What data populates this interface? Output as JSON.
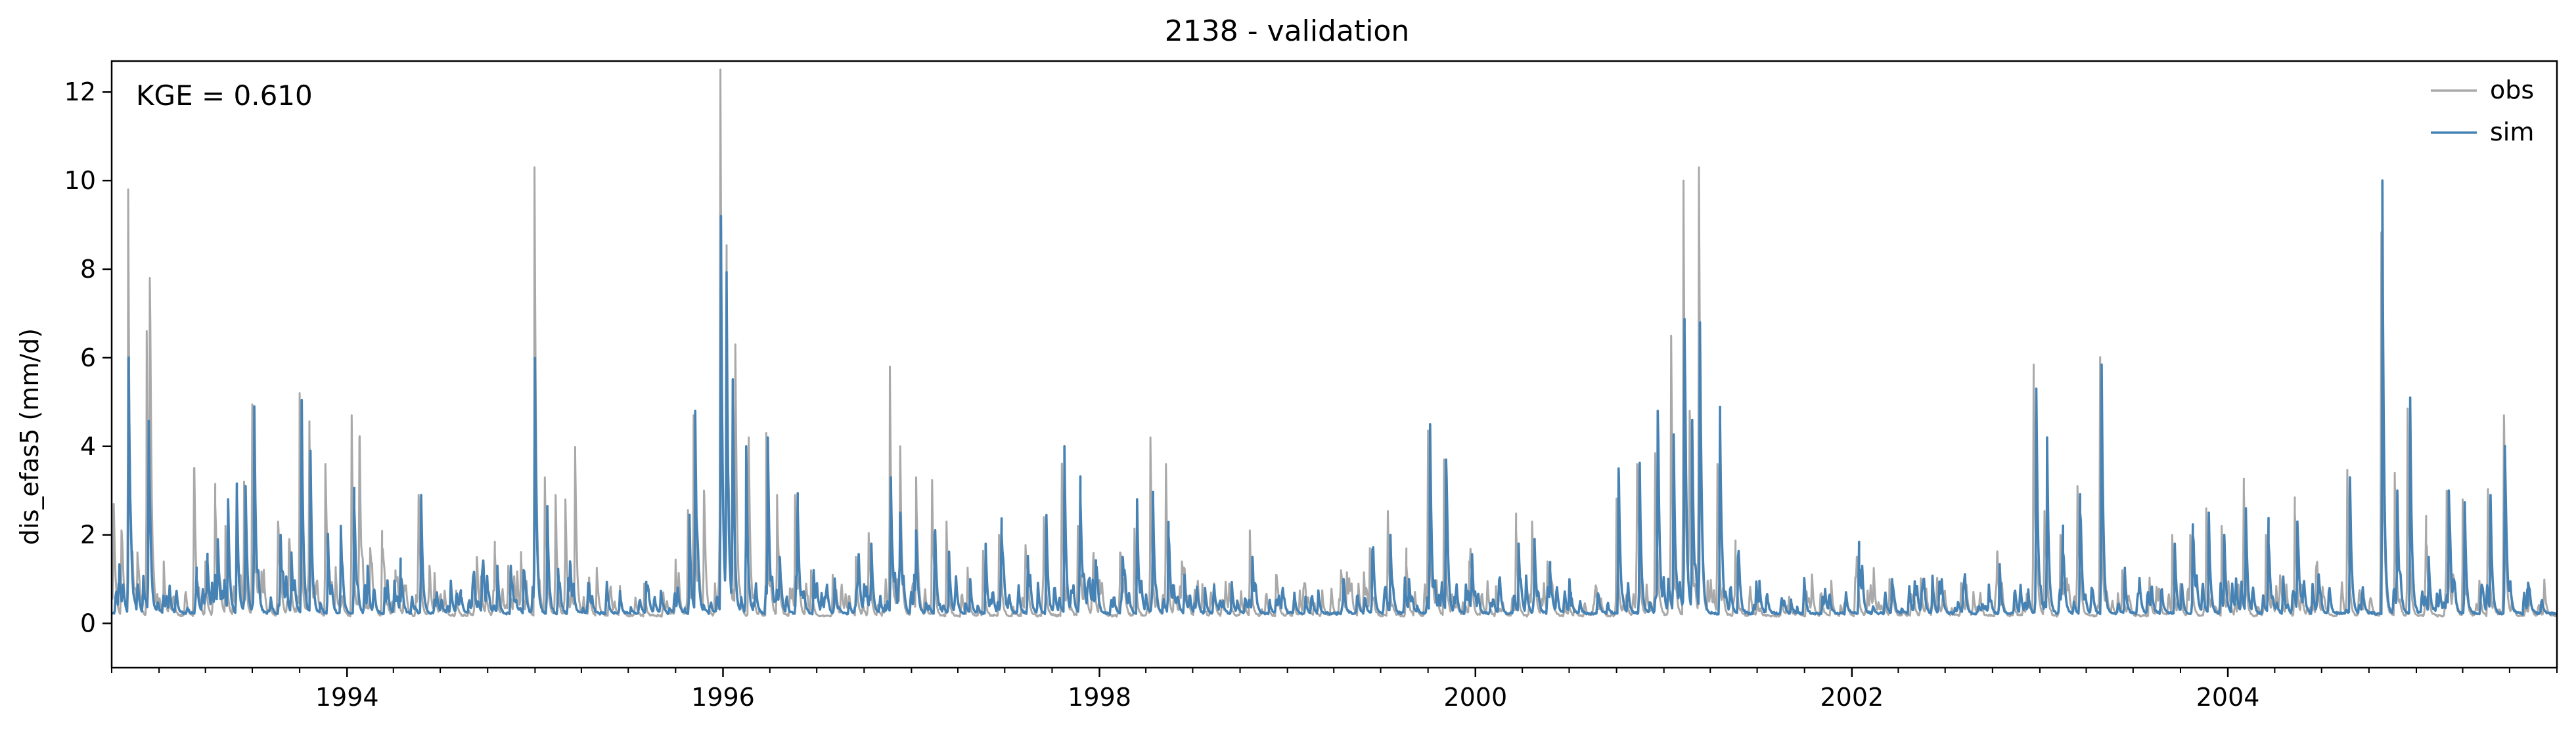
{
  "chart_data": {
    "type": "line",
    "title": "2138 - validation",
    "xlabel": "",
    "ylabel": "dis_efas5 (mm/d)",
    "xlim": [
      "1992-10-01",
      "2005-10-01"
    ],
    "ylim": [
      -1,
      12.7
    ],
    "x_ticks": [
      {
        "date": "1994-01-01",
        "label": "1994"
      },
      {
        "date": "1996-01-01",
        "label": "1996"
      },
      {
        "date": "1998-01-01",
        "label": "1998"
      },
      {
        "date": "2000-01-01",
        "label": "2000"
      },
      {
        "date": "2002-01-01",
        "label": "2002"
      },
      {
        "date": "2004-01-01",
        "label": "2004"
      }
    ],
    "y_ticks": [
      0,
      2,
      4,
      6,
      8,
      10,
      12
    ],
    "grid": false,
    "legend_position": "top-right",
    "annotation": "KGE = 0.610",
    "series": [
      {
        "name": "obs",
        "color": "#a9a9a9",
        "baseline": 0.15,
        "events": [
          [
            "1992-10-05",
            2.7
          ],
          [
            "1992-10-20",
            2.1
          ],
          [
            "1992-11-02",
            9.8
          ],
          [
            "1992-11-20",
            1.6
          ],
          [
            "1992-12-08",
            6.6
          ],
          [
            "1992-12-14",
            7.8
          ],
          [
            "1993-01-10",
            1.4
          ],
          [
            "1993-03-10",
            3.5
          ],
          [
            "1993-04-01",
            1.4
          ],
          [
            "1993-04-20",
            2.7
          ],
          [
            "1993-05-10",
            2.2
          ],
          [
            "1993-06-01",
            2.9
          ],
          [
            "1993-06-15",
            3.2
          ],
          [
            "1993-07-01",
            4.9
          ],
          [
            "1993-08-20",
            2.3
          ],
          [
            "1993-09-10",
            1.8
          ],
          [
            "1993-10-01",
            5.2
          ],
          [
            "1993-10-20",
            4.3
          ],
          [
            "1993-11-20",
            3.6
          ],
          [
            "1993-12-10",
            1.2
          ],
          [
            "1994-01-10",
            4.7
          ],
          [
            "1994-01-25",
            4.2
          ],
          [
            "1994-02-15",
            1.7
          ],
          [
            "1994-03-10",
            1.7
          ],
          [
            "1994-04-05",
            1.2
          ],
          [
            "1994-05-20",
            2.9
          ],
          [
            "1994-06-10",
            1.3
          ],
          [
            "1994-08-01",
            0.7
          ],
          [
            "1994-09-10",
            1.5
          ],
          [
            "1994-10-15",
            1.6
          ],
          [
            "1994-11-10",
            1.3
          ],
          [
            "1994-12-05",
            1.5
          ],
          [
            "1994-12-31",
            10.3
          ],
          [
            "1995-01-20",
            3.3
          ],
          [
            "1995-02-10",
            2.9
          ],
          [
            "1995-03-01",
            2.8
          ],
          [
            "1995-03-20",
            3.8
          ],
          [
            "1995-05-01",
            1.2
          ],
          [
            "1995-06-15",
            0.8
          ],
          [
            "1995-08-01",
            0.9
          ],
          [
            "1995-10-01",
            1.4
          ],
          [
            "1995-10-25",
            2.5
          ],
          [
            "1995-11-05",
            4.7
          ],
          [
            "1995-11-25",
            3.0
          ],
          [
            "1995-12-27",
            12.2
          ],
          [
            "1996-01-08",
            7.8
          ],
          [
            "1996-01-25",
            6.3
          ],
          [
            "1996-02-20",
            4.2
          ],
          [
            "1996-03-25",
            4.3
          ],
          [
            "1996-04-15",
            2.9
          ],
          [
            "1996-05-20",
            2.9
          ],
          [
            "1996-06-20",
            1.2
          ],
          [
            "1996-08-01",
            1.1
          ],
          [
            "1996-09-15",
            1.5
          ],
          [
            "1996-10-10",
            2.0
          ],
          [
            "1996-11-20",
            5.8
          ],
          [
            "1996-12-10",
            4.0
          ],
          [
            "1997-01-10",
            3.3
          ],
          [
            "1997-02-10",
            3.2
          ],
          [
            "1997-03-10",
            2.3
          ],
          [
            "1997-04-20",
            1.2
          ],
          [
            "1997-05-20",
            1.6
          ],
          [
            "1997-06-20",
            2.0
          ],
          [
            "1997-08-10",
            1.5
          ],
          [
            "1997-09-15",
            2.4
          ],
          [
            "1997-10-20",
            3.6
          ],
          [
            "1997-11-20",
            2.2
          ],
          [
            "1997-12-20",
            1.5
          ],
          [
            "1998-02-10",
            1.6
          ],
          [
            "1998-03-10",
            2.1
          ],
          [
            "1998-04-10",
            4.2
          ],
          [
            "1998-05-10",
            3.6
          ],
          [
            "1998-06-10",
            1.4
          ],
          [
            "1998-07-20",
            0.8
          ],
          [
            "1998-09-10",
            0.9
          ],
          [
            "1998-10-20",
            2.1
          ],
          [
            "1998-12-10",
            1.1
          ],
          [
            "1999-02-01",
            0.8
          ],
          [
            "1999-04-15",
            1.2
          ],
          [
            "1999-06-10",
            1.7
          ],
          [
            "1999-07-15",
            2.5
          ],
          [
            "1999-08-20",
            1.3
          ],
          [
            "1999-10-01",
            4.2
          ],
          [
            "1999-11-01",
            3.7
          ],
          [
            "1999-12-20",
            1.4
          ],
          [
            "2000-02-10",
            0.8
          ],
          [
            "2000-03-20",
            2.1
          ],
          [
            "2000-04-20",
            2.3
          ],
          [
            "2000-05-20",
            1.4
          ],
          [
            "2000-07-01",
            0.4
          ],
          [
            "2000-08-20",
            0.6
          ],
          [
            "2000-10-01",
            2.8
          ],
          [
            "2000-11-10",
            3.6
          ],
          [
            "2000-12-15",
            3.8
          ],
          [
            "2001-01-15",
            6.5
          ],
          [
            "2001-02-08",
            10.0
          ],
          [
            "2001-02-20",
            4.8
          ],
          [
            "2001-03-10",
            10.3
          ],
          [
            "2001-04-15",
            3.6
          ],
          [
            "2001-05-20",
            1.6
          ],
          [
            "2001-07-01",
            0.5
          ],
          [
            "2001-09-01",
            0.6
          ],
          [
            "2001-11-01",
            0.6
          ],
          [
            "2002-01-10",
            1.3
          ],
          [
            "2002-03-15",
            1.0
          ],
          [
            "2002-05-15",
            1.0
          ],
          [
            "2002-08-01",
            0.8
          ],
          [
            "2002-10-10",
            1.6
          ],
          [
            "2002-12-20",
            5.2
          ],
          [
            "2003-01-10",
            2.5
          ],
          [
            "2003-02-10",
            2.0
          ],
          [
            "2003-03-15",
            3.1
          ],
          [
            "2003-04-28",
            5.8
          ],
          [
            "2003-06-10",
            1.2
          ],
          [
            "2003-08-01",
            0.6
          ],
          [
            "2003-09-15",
            2.0
          ],
          [
            "2003-10-20",
            2.0
          ],
          [
            "2003-11-20",
            2.6
          ],
          [
            "2003-12-20",
            2.2
          ],
          [
            "2004-02-01",
            3.0
          ],
          [
            "2004-03-15",
            2.0
          ],
          [
            "2004-05-10",
            2.5
          ],
          [
            "2004-06-20",
            1.2
          ],
          [
            "2004-08-20",
            3.4
          ],
          [
            "2004-10-25",
            8.8
          ],
          [
            "2004-11-20",
            3.4
          ],
          [
            "2004-12-15",
            4.8
          ],
          [
            "2005-01-20",
            1.8
          ],
          [
            "2005-03-01",
            3.0
          ],
          [
            "2005-04-01",
            2.8
          ],
          [
            "2005-05-20",
            3.0
          ],
          [
            "2005-06-20",
            4.7
          ],
          [
            "2005-08-01",
            0.5
          ]
        ]
      },
      {
        "name": "sim",
        "color": "#4682b4",
        "baseline": 0.2,
        "events": [
          [
            "1992-10-15",
            0.7
          ],
          [
            "1992-11-03",
            5.6
          ],
          [
            "1992-11-20",
            0.8
          ],
          [
            "1992-12-12",
            4.5
          ],
          [
            "1993-01-15",
            0.6
          ],
          [
            "1993-03-15",
            1.0
          ],
          [
            "1993-04-05",
            1.4
          ],
          [
            "1993-04-25",
            1.9
          ],
          [
            "1993-05-15",
            2.8
          ],
          [
            "1993-06-01",
            2.9
          ],
          [
            "1993-06-18",
            3.1
          ],
          [
            "1993-07-05",
            4.9
          ],
          [
            "1993-08-25",
            2.0
          ],
          [
            "1993-09-15",
            1.6
          ],
          [
            "1993-10-05",
            5.0
          ],
          [
            "1993-10-22",
            3.9
          ],
          [
            "1993-11-25",
            2.0
          ],
          [
            "1993-12-20",
            2.2
          ],
          [
            "1994-01-15",
            2.6
          ],
          [
            "1994-02-10",
            1.3
          ],
          [
            "1994-03-15",
            0.8
          ],
          [
            "1994-04-15",
            0.5
          ],
          [
            "1994-05-25",
            2.9
          ],
          [
            "1994-06-20",
            0.5
          ],
          [
            "1994-08-10",
            0.5
          ],
          [
            "1994-09-20",
            1.1
          ],
          [
            "1994-10-20",
            1.3
          ],
          [
            "1994-11-15",
            1.3
          ],
          [
            "1994-12-10",
            1.2
          ],
          [
            "1995-01-01",
            5.8
          ],
          [
            "1995-01-25",
            2.6
          ],
          [
            "1995-02-15",
            1.2
          ],
          [
            "1995-03-10",
            1.4
          ],
          [
            "1995-04-15",
            0.8
          ],
          [
            "1995-06-15",
            0.7
          ],
          [
            "1995-08-05",
            0.9
          ],
          [
            "1995-10-05",
            0.8
          ],
          [
            "1995-10-28",
            2.4
          ],
          [
            "1995-11-08",
            4.8
          ],
          [
            "1995-12-28",
            9.2
          ],
          [
            "1996-01-08",
            7.6
          ],
          [
            "1996-01-20",
            5.0
          ],
          [
            "1996-02-15",
            4.0
          ],
          [
            "1996-03-28",
            4.2
          ],
          [
            "1996-04-20",
            1.5
          ],
          [
            "1996-05-25",
            2.6
          ],
          [
            "1996-06-25",
            1.2
          ],
          [
            "1996-08-05",
            1.0
          ],
          [
            "1996-09-20",
            1.5
          ],
          [
            "1996-10-15",
            1.8
          ],
          [
            "1996-11-22",
            3.3
          ],
          [
            "1996-12-10",
            2.5
          ],
          [
            "1997-01-10",
            2.1
          ],
          [
            "1997-02-15",
            2.0
          ],
          [
            "1997-03-15",
            1.6
          ],
          [
            "1997-04-25",
            1.0
          ],
          [
            "1997-05-25",
            1.8
          ],
          [
            "1997-06-25",
            2.0
          ],
          [
            "1997-08-15",
            1.5
          ],
          [
            "1997-09-20",
            2.4
          ],
          [
            "1997-10-25",
            4.0
          ],
          [
            "1997-11-25",
            2.8
          ],
          [
            "1997-12-25",
            1.2
          ],
          [
            "1998-02-15",
            1.5
          ],
          [
            "1998-03-15",
            2.8
          ],
          [
            "1998-04-15",
            2.8
          ],
          [
            "1998-05-15",
            2.0
          ],
          [
            "1998-06-15",
            1.1
          ],
          [
            "1998-07-25",
            0.8
          ],
          [
            "1998-09-15",
            0.9
          ],
          [
            "1998-10-25",
            1.5
          ],
          [
            "1998-12-15",
            0.6
          ],
          [
            "1999-02-05",
            0.6
          ],
          [
            "1999-04-20",
            1.0
          ],
          [
            "1999-06-15",
            1.5
          ],
          [
            "1999-07-20",
            2.0
          ],
          [
            "1999-08-25",
            1.0
          ],
          [
            "1999-10-05",
            4.5
          ],
          [
            "1999-11-05",
            3.7
          ],
          [
            "1999-12-25",
            1.3
          ],
          [
            "2000-02-15",
            0.7
          ],
          [
            "2000-03-25",
            1.8
          ],
          [
            "2000-04-25",
            1.8
          ],
          [
            "2000-05-25",
            1.2
          ],
          [
            "2000-07-05",
            0.4
          ],
          [
            "2000-08-25",
            0.6
          ],
          [
            "2000-10-05",
            3.5
          ],
          [
            "2000-11-15",
            3.6
          ],
          [
            "2000-12-20",
            4.8
          ],
          [
            "2001-01-20",
            4.2
          ],
          [
            "2001-02-10",
            6.6
          ],
          [
            "2001-02-25",
            4.5
          ],
          [
            "2001-03-12",
            6.7
          ],
          [
            "2001-04-20",
            4.6
          ],
          [
            "2001-05-25",
            1.5
          ],
          [
            "2001-07-05",
            0.5
          ],
          [
            "2001-09-05",
            0.5
          ],
          [
            "2001-11-05",
            0.6
          ],
          [
            "2002-01-15",
            1.2
          ],
          [
            "2002-03-20",
            1.0
          ],
          [
            "2002-05-20",
            1.0
          ],
          [
            "2002-08-05",
            0.8
          ],
          [
            "2002-10-15",
            1.3
          ],
          [
            "2002-12-25",
            5.3
          ],
          [
            "2003-01-15",
            4.2
          ],
          [
            "2003-02-15",
            1.6
          ],
          [
            "2003-03-20",
            2.5
          ],
          [
            "2003-05-01",
            5.8
          ],
          [
            "2003-06-15",
            1.2
          ],
          [
            "2003-08-05",
            0.6
          ],
          [
            "2003-09-20",
            1.8
          ],
          [
            "2003-10-25",
            2.0
          ],
          [
            "2003-11-25",
            2.5
          ],
          [
            "2003-12-25",
            2.0
          ],
          [
            "2004-02-05",
            2.6
          ],
          [
            "2004-03-20",
            1.8
          ],
          [
            "2004-05-15",
            2.3
          ],
          [
            "2004-06-25",
            1.1
          ],
          [
            "2004-08-25",
            3.3
          ],
          [
            "2004-10-27",
            10.0
          ],
          [
            "2004-11-25",
            3.0
          ],
          [
            "2004-12-20",
            5.1
          ],
          [
            "2005-01-25",
            1.5
          ],
          [
            "2005-03-05",
            3.0
          ],
          [
            "2005-04-05",
            2.7
          ],
          [
            "2005-05-25",
            2.9
          ],
          [
            "2005-06-22",
            3.9
          ],
          [
            "2005-08-05",
            0.4
          ]
        ]
      }
    ]
  }
}
